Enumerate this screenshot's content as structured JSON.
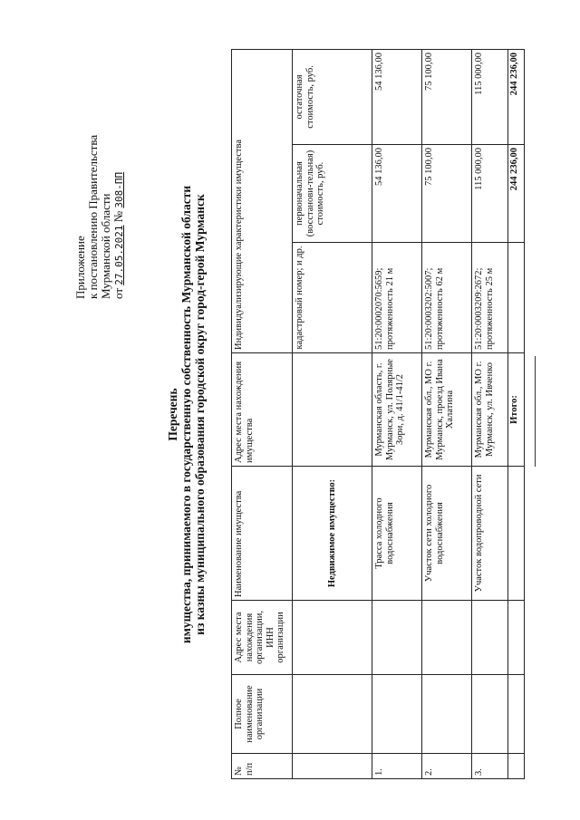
{
  "appendix": {
    "line1": "Приложение",
    "line2": "к постановлению Правительства",
    "line3": "Мурманской области",
    "date_prefix": "от",
    "date": "27.05.2021",
    "number_prefix": "№",
    "number": "308-ПП"
  },
  "title": {
    "line1": "Перечень",
    "line2": "имущества, принимаемого в государственную собственность Мурманской области",
    "line3": "из казны муниципального образования городской округ город-герой Мурманск"
  },
  "table": {
    "headers": {
      "num": "№ п/п",
      "org_name": "Полное наименование организации",
      "org_address": "Адрес места нахождения организации, ИНН организации",
      "property_name": "Наименование имущества",
      "property_address": "Адрес места нахождения имущества",
      "characteristics": "Индивидуализирующие характеристики имущества",
      "cadastral": "кадастровый номер; и др.",
      "initial_cost": "первоначальная (восстанови-тельная) стоимость, руб.",
      "residual_cost": "остаточная стоимость, руб."
    },
    "section": "Недвижимое имущество:",
    "rows": [
      {
        "num": "1.",
        "name": "Трасса холодного водоснабжения",
        "address": "Мурманская область, г. Мурманск, ул. Полярные Зори, д. 41/1-41/2",
        "cadastral": "51:20:0002070:5659; протяженность 21 м",
        "initial": "54 136,00",
        "residual": "54 136,00"
      },
      {
        "num": "2.",
        "name": "Участок сети холодного водоснабжения",
        "address": "Мурманская обл., МО г. Мурманск, проезд Ивана Халатина",
        "cadastral": "51:20:0003202:5007; протяженность 62 м",
        "initial": "75 100,00",
        "residual": "75 100,00"
      },
      {
        "num": "3.",
        "name": "Участок водопроводной сети",
        "address": "Мурманская обл., МО г. Мурманск, ул. Ивченко",
        "cadastral": "51:20:0003209:2672; протяженность 25 м",
        "initial": "115 000,00",
        "residual": "115 000,00"
      }
    ],
    "total_label": "Итого:",
    "total_initial": "244 236,00",
    "total_residual": "244 236,00"
  }
}
